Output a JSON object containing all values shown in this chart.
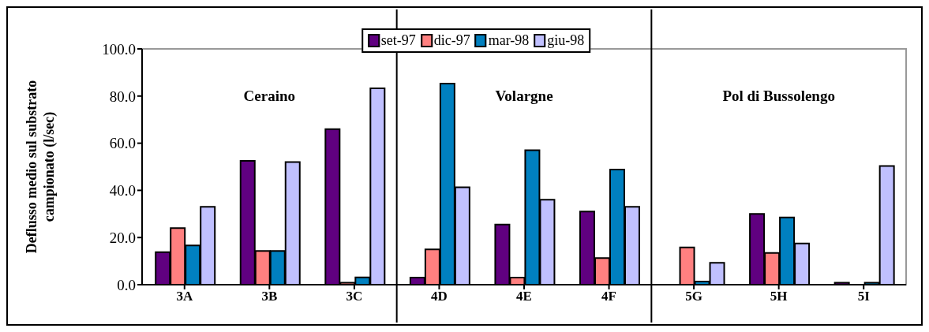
{
  "chart_data": {
    "type": "bar",
    "ylabel": "Deflusso medio sul substrato campionato (l/sec)",
    "categories": [
      "3A",
      "3B",
      "3C",
      "4D",
      "4E",
      "4F",
      "5G",
      "5H",
      "5I"
    ],
    "series": [
      {
        "name": "set-97",
        "color": "#600080",
        "values": [
          13.8,
          52.5,
          66,
          3,
          25.5,
          31,
          null,
          30,
          0.8
        ]
      },
      {
        "name": "dic-97",
        "color": "#ff8080",
        "values": [
          24,
          14.3,
          0.8,
          15,
          3,
          11.3,
          15.8,
          13.5,
          null
        ]
      },
      {
        "name": "mar-98",
        "color": "#0080c0",
        "values": [
          16.6,
          14.3,
          3.1,
          85.3,
          57,
          48.8,
          1.3,
          28.5,
          0.8
        ]
      },
      {
        "name": "giu-98",
        "color": "#c0c0ff",
        "values": [
          33,
          52,
          83.3,
          41.3,
          36,
          33,
          9.3,
          17.5,
          50.3
        ]
      }
    ],
    "ylim": [
      0,
      100
    ],
    "yticks": [
      {
        "value": 0,
        "label": "0.0"
      },
      {
        "value": 20,
        "label": "20.0"
      },
      {
        "value": 40,
        "label": "40.0"
      },
      {
        "value": 60,
        "label": "60.0"
      },
      {
        "value": 80,
        "label": "80.0"
      },
      {
        "value": 100,
        "label": "100.0"
      }
    ],
    "annotations": [
      "Ceraino",
      "Volargne",
      "Pol di Bussolengo"
    ],
    "legend": "top"
  }
}
